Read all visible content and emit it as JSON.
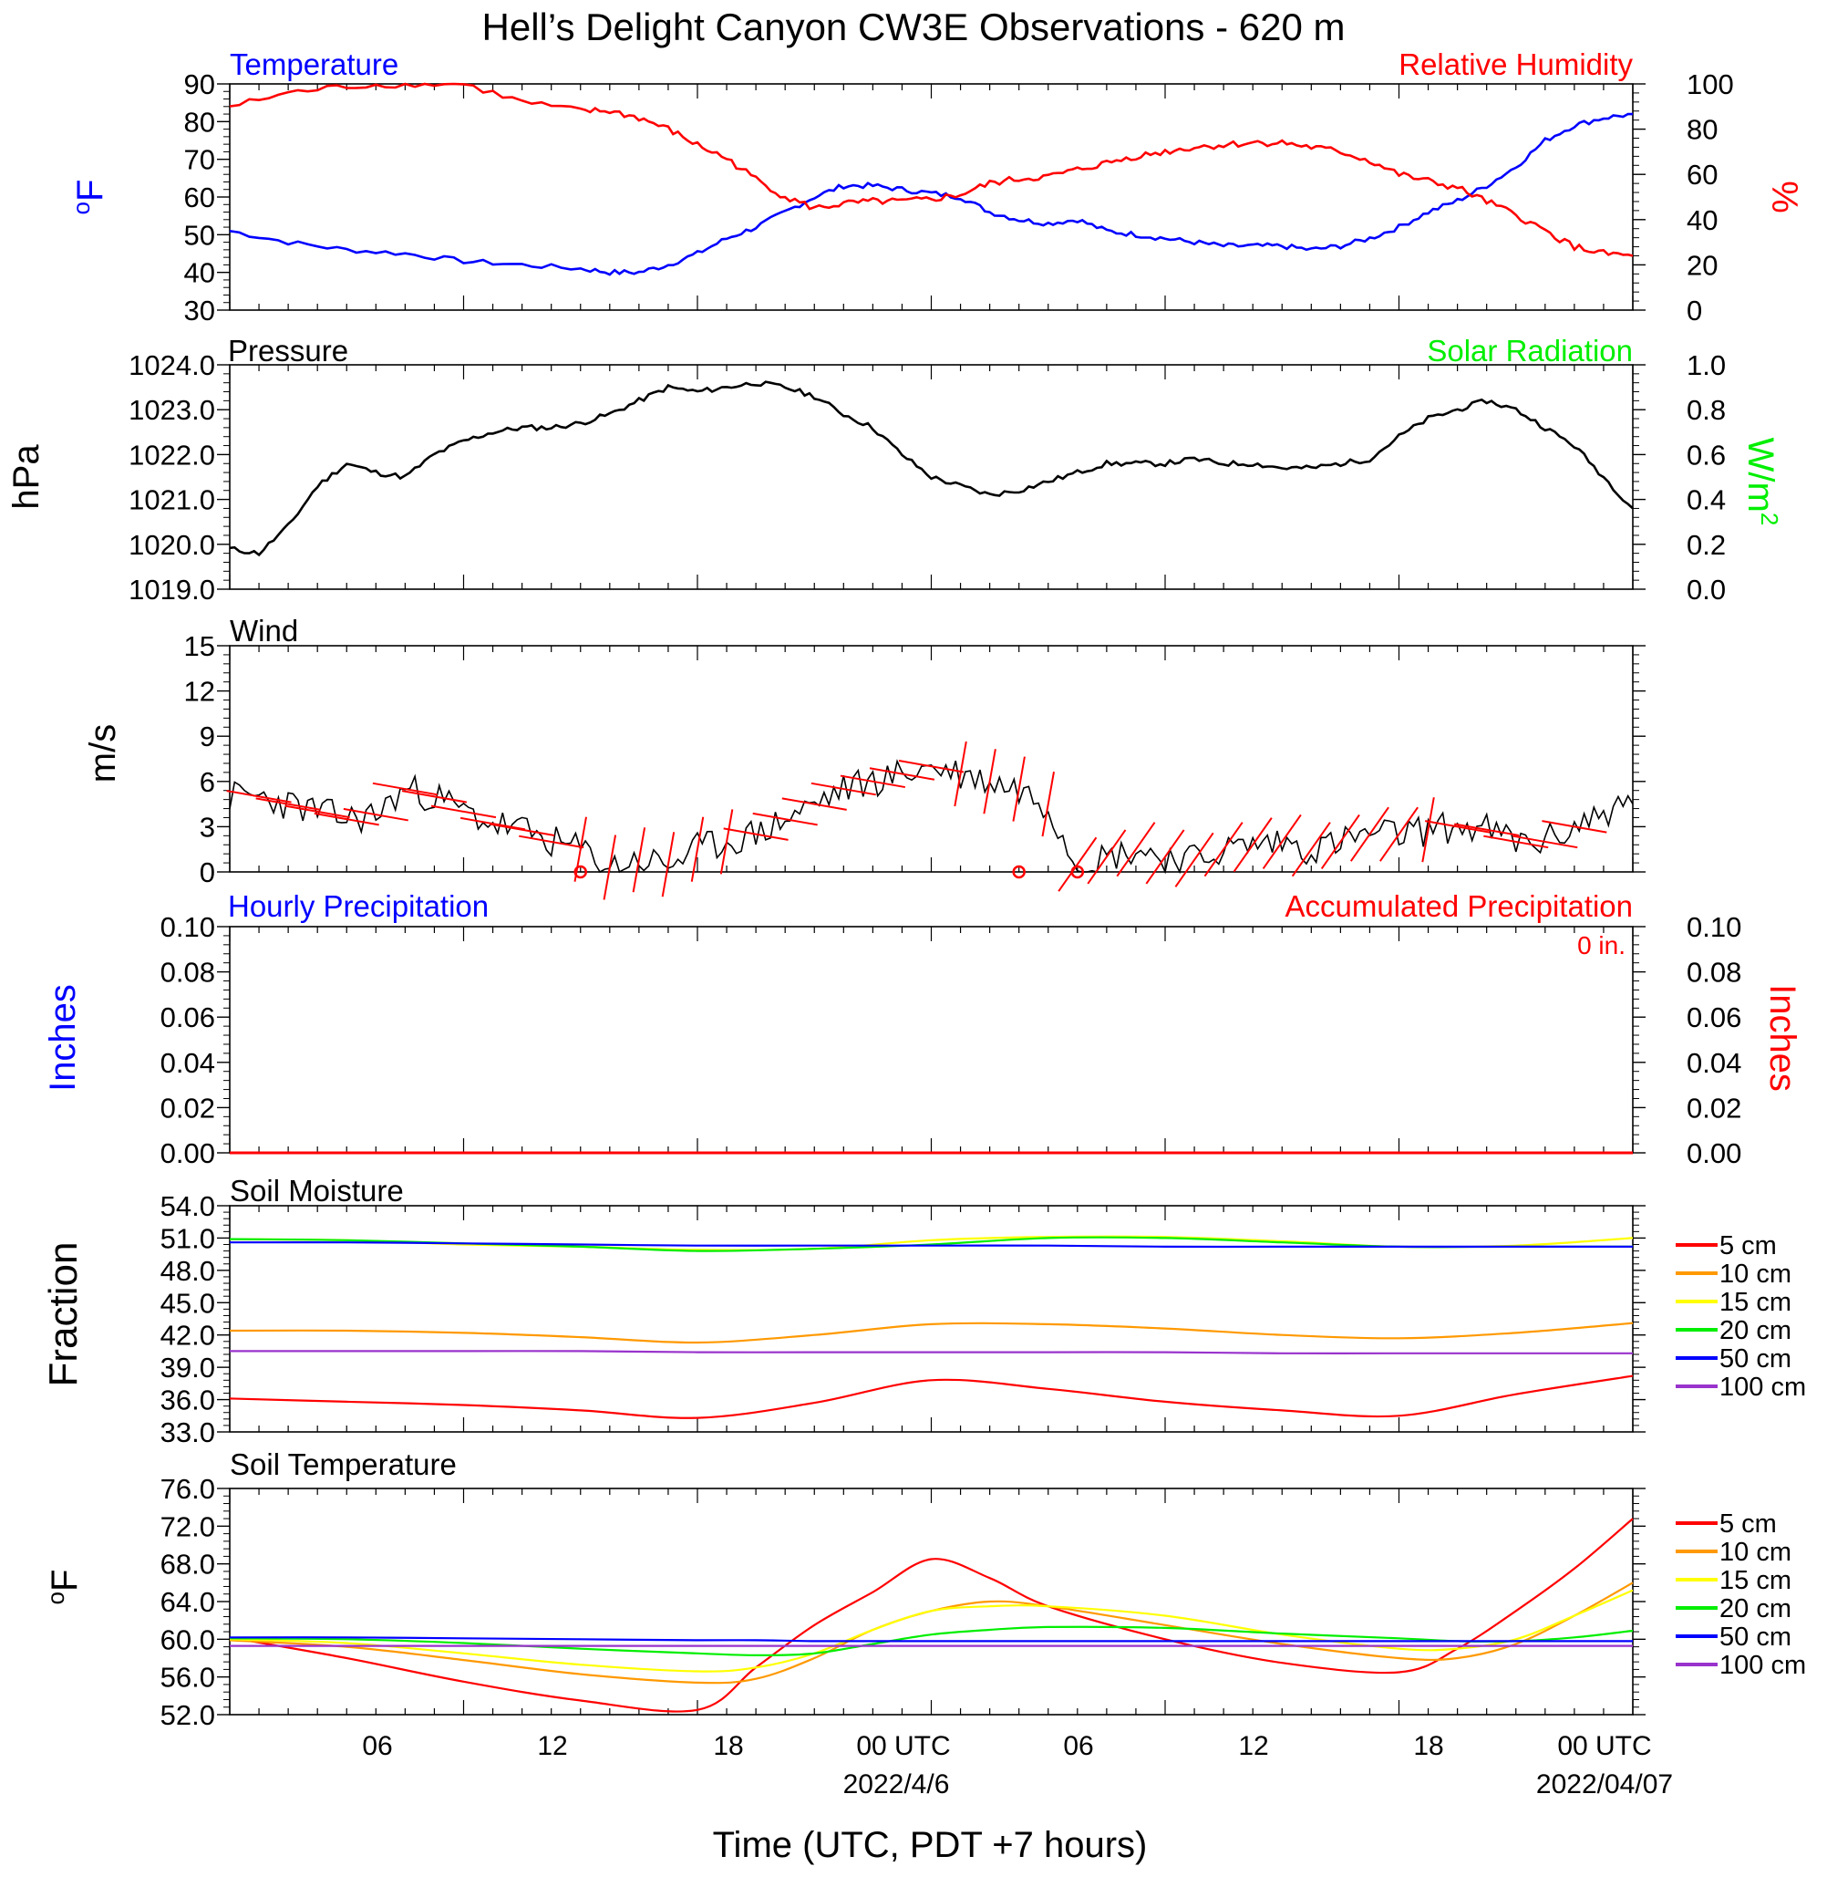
{
  "title": "Hell’s Delight Canyon CW3E Observations - 620 m",
  "x_axis": {
    "label": "Time (UTC, PDT +7 hours)",
    "ticks": [
      "06",
      "12",
      "18",
      "00 UTC",
      "06",
      "12",
      "18",
      "00 UTC"
    ],
    "dates": [
      "2022/4/6",
      "2022/04/07"
    ]
  },
  "panels": {
    "temp": {
      "left_title": "Temperature",
      "right_title": "Relative Humidity",
      "left_unit": "oF",
      "right_unit": "%"
    },
    "pressure": {
      "left_title": "Pressure",
      "right_title": "Solar Radiation",
      "left_unit": "hPa",
      "right_unit": "W/m2"
    },
    "wind": {
      "left_title": "Wind",
      "left_unit": "m/s"
    },
    "precip": {
      "left_title": "Hourly Precipitation",
      "right_title": "Accumulated Precipitation",
      "left_unit": "Inches",
      "right_unit": "Inches",
      "total": "0 in."
    },
    "soil_moisture": {
      "left_title": "Soil Moisture",
      "left_unit": "Fraction"
    },
    "soil_temp": {
      "left_title": "Soil Temperature",
      "left_unit": "oF"
    }
  },
  "legend": [
    {
      "label": "5 cm",
      "color": "#ff0000"
    },
    {
      "label": "10 cm",
      "color": "#ff9900"
    },
    {
      "label": "15 cm",
      "color": "#ffff00"
    },
    {
      "label": "20 cm",
      "color": "#00ee00"
    },
    {
      "label": "50 cm",
      "color": "#0000ff"
    },
    {
      "label": "100 cm",
      "color": "#9933cc"
    }
  ],
  "chart_data": [
    {
      "type": "line",
      "title": "Temperature / Relative Humidity",
      "x_hours_since_start": [
        0,
        2,
        4,
        6,
        8,
        10,
        12,
        13,
        14,
        15,
        16,
        17,
        18,
        19,
        20,
        21,
        22,
        23,
        24,
        25,
        26,
        27,
        28,
        29,
        30,
        31,
        32,
        33,
        34,
        35,
        36,
        37,
        38,
        39,
        40,
        41,
        42,
        43,
        44,
        45,
        46,
        47,
        48
      ],
      "ylim_left": [
        30,
        90
      ],
      "yticks_left": [
        "30",
        "40",
        "50",
        "60",
        "70",
        "80",
        "90"
      ],
      "ylim_right": [
        0,
        100
      ],
      "yticks_right": [
        "0",
        "20",
        "40",
        "60",
        "80",
        "100"
      ],
      "series": [
        {
          "name": "Temperature",
          "axis": "left",
          "color": "#0000ff",
          "values": [
            51,
            48,
            46,
            45,
            43,
            42,
            41,
            40,
            40,
            42,
            45,
            49,
            52,
            56,
            60,
            63,
            63,
            62,
            61,
            60,
            56,
            54,
            53,
            54,
            51,
            50,
            49,
            48,
            47,
            47,
            47,
            46,
            47,
            49,
            52,
            56,
            59,
            63,
            68,
            75,
            79,
            81,
            82
          ]
        },
        {
          "name": "Relative Humidity",
          "axis": "right",
          "color": "#ff0000",
          "values": [
            90,
            96,
            99,
            100,
            100,
            92,
            88,
            88,
            85,
            80,
            73,
            67,
            58,
            50,
            45,
            47,
            48,
            48,
            49,
            51,
            56,
            58,
            59,
            62,
            65,
            68,
            70,
            72,
            73,
            74,
            74,
            72,
            70,
            66,
            60,
            57,
            54,
            48,
            42,
            35,
            28,
            25,
            24
          ]
        }
      ]
    },
    {
      "type": "line",
      "title": "Pressure / Solar Radiation",
      "x_hours_since_start": [
        0,
        1,
        2,
        3,
        4,
        5,
        6,
        7,
        8,
        9,
        10,
        11,
        12,
        13,
        14,
        15,
        16,
        17,
        18,
        19,
        20,
        21,
        22,
        23,
        24,
        25,
        26,
        27,
        28,
        29,
        30,
        31,
        32,
        33,
        34,
        35,
        36,
        37,
        38,
        39,
        40,
        41,
        42,
        43,
        44,
        45,
        46,
        47,
        48
      ],
      "ylim_left": [
        1019.0,
        1024.0
      ],
      "yticks_left": [
        "1019.0",
        "1020.0",
        "1021.0",
        "1022.0",
        "1023.0",
        "1024.0"
      ],
      "ylim_right": [
        0.0,
        1.0
      ],
      "yticks_right": [
        "0.0",
        "0.2",
        "0.4",
        "0.6",
        "0.8",
        "1.0"
      ],
      "series": [
        {
          "name": "Pressure",
          "axis": "left",
          "color": "#000000",
          "values": [
            1019.9,
            1019.8,
            1020.4,
            1021.3,
            1021.8,
            1021.6,
            1021.5,
            1022.0,
            1022.3,
            1022.5,
            1022.6,
            1022.6,
            1022.7,
            1022.9,
            1023.2,
            1023.5,
            1023.4,
            1023.5,
            1023.6,
            1023.5,
            1023.3,
            1022.9,
            1022.6,
            1022.0,
            1021.5,
            1021.3,
            1021.1,
            1021.2,
            1021.4,
            1021.6,
            1021.8,
            1021.8,
            1021.8,
            1021.9,
            1021.8,
            1021.8,
            1021.7,
            1021.7,
            1021.8,
            1021.9,
            1022.4,
            1022.8,
            1023.0,
            1023.2,
            1023.0,
            1022.6,
            1022.2,
            1021.5,
            1020.8
          ]
        }
      ]
    },
    {
      "type": "line",
      "title": "Wind",
      "x_hours_since_start": [
        0,
        1,
        2,
        3,
        4,
        5,
        6,
        7,
        8,
        9,
        10,
        11,
        12,
        13,
        14,
        15,
        16,
        17,
        18,
        19,
        20,
        21,
        22,
        23,
        24,
        25,
        26,
        27,
        28,
        29,
        30,
        31,
        32,
        33,
        34,
        35,
        36,
        37,
        38,
        39,
        40,
        41,
        42,
        43,
        44,
        45,
        46,
        47,
        48
      ],
      "ylim": [
        0,
        15
      ],
      "yticks": [
        "0",
        "3",
        "6",
        "9",
        "12",
        "15"
      ],
      "series": [
        {
          "name": "Wind Speed",
          "color": "#000000",
          "values": [
            5.0,
            5.0,
            4.5,
            4.0,
            3.5,
            3.8,
            5.5,
            5.0,
            4.0,
            3.2,
            2.8,
            2.0,
            1.5,
            0.3,
            0.8,
            0.5,
            1.5,
            2.0,
            2.5,
            3.5,
            4.5,
            5.5,
            6.0,
            6.5,
            7.0,
            6.5,
            6.0,
            5.5,
            4.5,
            0.5,
            1.0,
            1.5,
            1.0,
            0.8,
            1.5,
            1.8,
            2.0,
            1.5,
            2.0,
            2.5,
            2.5,
            2.8,
            3.0,
            2.8,
            2.0,
            2.0,
            3.0,
            4.0,
            4.5
          ]
        }
      ],
      "calm_markers_hours": [
        12.0,
        27.0,
        29.0
      ]
    },
    {
      "type": "line",
      "title": "Hourly / Accumulated Precipitation",
      "x_hours_since_start": [
        0,
        48
      ],
      "ylim": [
        0.0,
        0.1
      ],
      "yticks": [
        "0.00",
        "0.02",
        "0.04",
        "0.06",
        "0.08",
        "0.10"
      ],
      "series": [
        {
          "name": "Hourly Precipitation",
          "color": "#0000ff",
          "values": [
            0.0,
            0.0
          ]
        },
        {
          "name": "Accumulated Precipitation",
          "color": "#ff0000",
          "values": [
            0.0,
            0.0
          ]
        }
      ]
    },
    {
      "type": "line",
      "title": "Soil Moisture",
      "x_hours_since_start": [
        0,
        4,
        8,
        12,
        16,
        20,
        24,
        28,
        32,
        36,
        40,
        44,
        48
      ],
      "ylim": [
        33.0,
        54.0
      ],
      "yticks": [
        "33.0",
        "36.0",
        "39.0",
        "42.0",
        "45.0",
        "48.0",
        "51.0",
        "54.0"
      ],
      "series": [
        {
          "name": "5 cm",
          "color": "#ff0000",
          "values": [
            36.1,
            35.8,
            35.5,
            35.0,
            34.3,
            35.7,
            37.8,
            37.0,
            35.8,
            35.0,
            34.5,
            36.5,
            38.2
          ]
        },
        {
          "name": "10 cm",
          "color": "#ff9900",
          "values": [
            42.4,
            42.4,
            42.2,
            41.8,
            41.3,
            42.0,
            43.0,
            43.0,
            42.6,
            42.0,
            41.7,
            42.2,
            43.1
          ]
        },
        {
          "name": "15 cm",
          "color": "#ffff00",
          "values": [
            50.9,
            50.8,
            50.4,
            50.2,
            49.9,
            50.0,
            50.8,
            51.1,
            51.1,
            50.7,
            50.2,
            50.3,
            51.0
          ]
        },
        {
          "name": "20 cm",
          "color": "#00ee00",
          "values": [
            50.9,
            50.8,
            50.5,
            50.2,
            49.8,
            50.0,
            50.4,
            51.0,
            51.0,
            50.6,
            50.2,
            50.2,
            50.2
          ]
        },
        {
          "name": "50 cm",
          "color": "#0000ff",
          "values": [
            50.6,
            50.6,
            50.5,
            50.4,
            50.3,
            50.3,
            50.3,
            50.3,
            50.2,
            50.2,
            50.2,
            50.2,
            50.2
          ]
        },
        {
          "name": "100 cm",
          "color": "#9933cc",
          "values": [
            40.5,
            40.5,
            40.5,
            40.5,
            40.4,
            40.4,
            40.4,
            40.4,
            40.4,
            40.3,
            40.3,
            40.3,
            40.3
          ]
        }
      ]
    },
    {
      "type": "line",
      "title": "Soil Temperature",
      "x_hours_since_start": [
        0,
        4,
        8,
        12,
        16,
        18,
        20,
        22,
        24,
        26,
        28,
        32,
        36,
        40,
        42,
        44,
        46,
        48
      ],
      "ylim": [
        52.0,
        76.0
      ],
      "yticks": [
        "52.0",
        "56.0",
        "60.0",
        "64.0",
        "68.0",
        "72.0",
        "76.0"
      ],
      "series": [
        {
          "name": "5 cm",
          "color": "#ff0000",
          "values": [
            60.2,
            58.0,
            55.5,
            53.5,
            52.5,
            57.0,
            61.5,
            65.0,
            68.5,
            66.5,
            63.5,
            60.0,
            57.5,
            56.5,
            59.0,
            63.0,
            67.5,
            72.8
          ]
        },
        {
          "name": "10 cm",
          "color": "#ff9900",
          "values": [
            59.9,
            59.2,
            57.8,
            56.3,
            55.4,
            55.8,
            58.0,
            61.0,
            63.0,
            64.0,
            63.5,
            61.5,
            59.5,
            58.0,
            58.0,
            59.5,
            62.5,
            66.0
          ]
        },
        {
          "name": "15 cm",
          "color": "#ffff00",
          "values": [
            60.0,
            59.6,
            58.5,
            57.3,
            56.6,
            57.0,
            58.5,
            61.0,
            63.0,
            63.5,
            63.5,
            62.5,
            60.5,
            59.0,
            59.0,
            60.0,
            62.5,
            65.2
          ]
        },
        {
          "name": "20 cm",
          "color": "#00ee00",
          "values": [
            60.1,
            60.0,
            59.6,
            59.0,
            58.5,
            58.3,
            58.5,
            59.5,
            60.5,
            61.0,
            61.3,
            61.2,
            60.6,
            60.1,
            59.8,
            59.8,
            60.2,
            60.9
          ]
        },
        {
          "name": "50 cm",
          "color": "#0000ff",
          "values": [
            60.2,
            60.2,
            60.1,
            60.0,
            59.9,
            59.9,
            59.8,
            59.8,
            59.8,
            59.8,
            59.8,
            59.8,
            59.8,
            59.8,
            59.8,
            59.8,
            59.8,
            59.8
          ]
        },
        {
          "name": "100 cm",
          "color": "#9933cc",
          "values": [
            59.3,
            59.3,
            59.3,
            59.3,
            59.3,
            59.3,
            59.3,
            59.3,
            59.3,
            59.3,
            59.3,
            59.3,
            59.3,
            59.3,
            59.3,
            59.3,
            59.3,
            59.3
          ]
        }
      ]
    }
  ]
}
